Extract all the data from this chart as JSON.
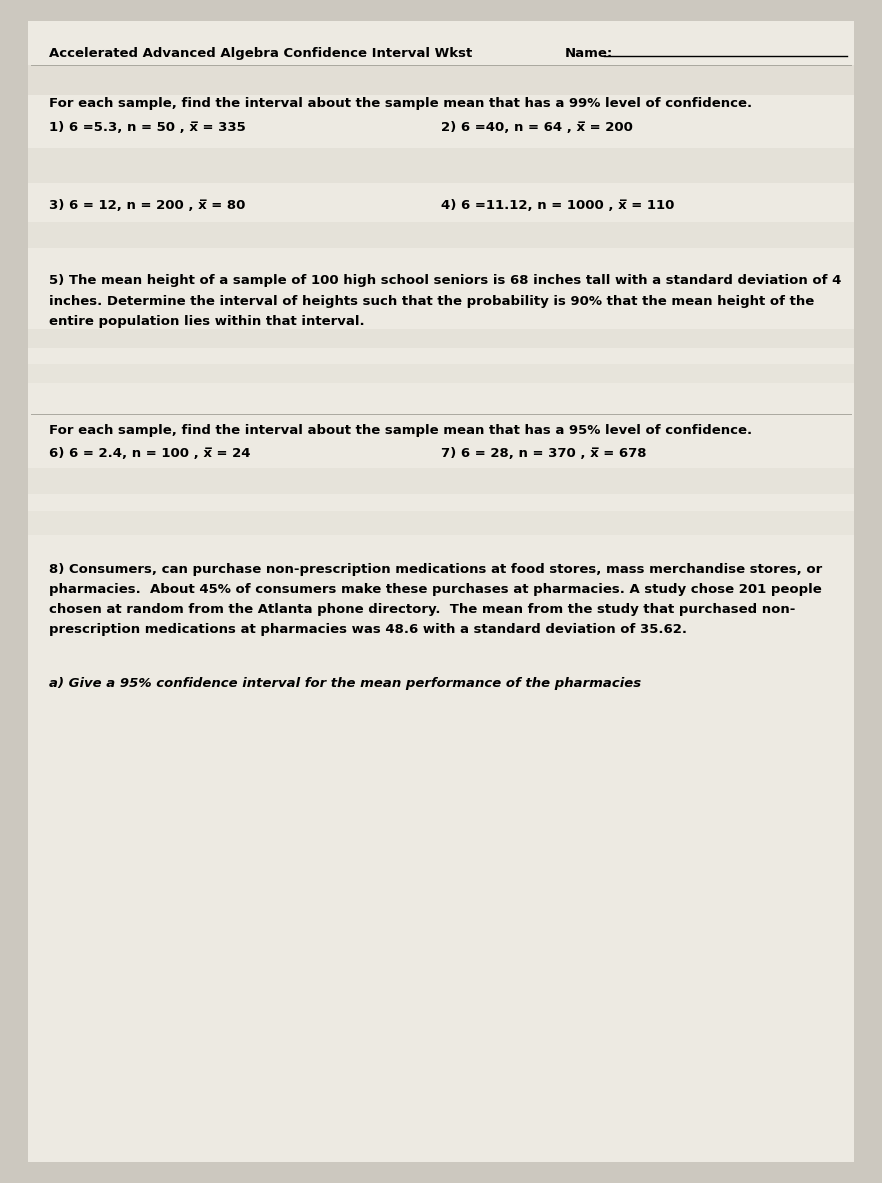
{
  "title": "Accelerated Advanced Algebra Confidence Interval Wkst",
  "name_label": "Name:",
  "bg_color": "#ccc8bf",
  "paper_color": "#edeae2",
  "section1_header": "For each sample, find the interval about the sample mean that has a 99% level of confidence.",
  "q1": "1) 6 =5.3, n = 50 , x̅ = 335",
  "q2": "2) 6 =40, n = 64 , x̅ = 200",
  "q3": "3) 6 = 12, n = 200 , x̅ = 80",
  "q4": "4) 6 =11.12, n = 1000 , x̅ = 110",
  "q5_line1": "5) The mean height of a sample of 100 high school seniors is 68 inches tall with a standard deviation of 4",
  "q5_line2": "inches. Determine the interval of heights such that the probability is 90% that the mean height of the",
  "q5_line3": "entire population lies within that interval.",
  "section2_header": "For each sample, find the interval about the sample mean that has a 95% level of confidence.",
  "q6": "6) 6 = 2.4, n = 100 , x̅ = 24",
  "q7": "7) 6 = 28, n = 370 , x̅ = 678",
  "q8_line1": "8) Consumers, can purchase non-prescription medications at food stores, mass merchandise stores, or",
  "q8_line2": "pharmacies.  About 45% of consumers make these purchases at pharmacies. A study chose 201 people",
  "q8_line3": "chosen at random from the Atlanta phone directory.  The mean from the study that purchased non-",
  "q8_line4": "prescription medications at pharmacies was 48.6 with a standard deviation of 35.62.",
  "q8a": "a) Give a 95% confidence interval for the mean performance of the pharmacies"
}
